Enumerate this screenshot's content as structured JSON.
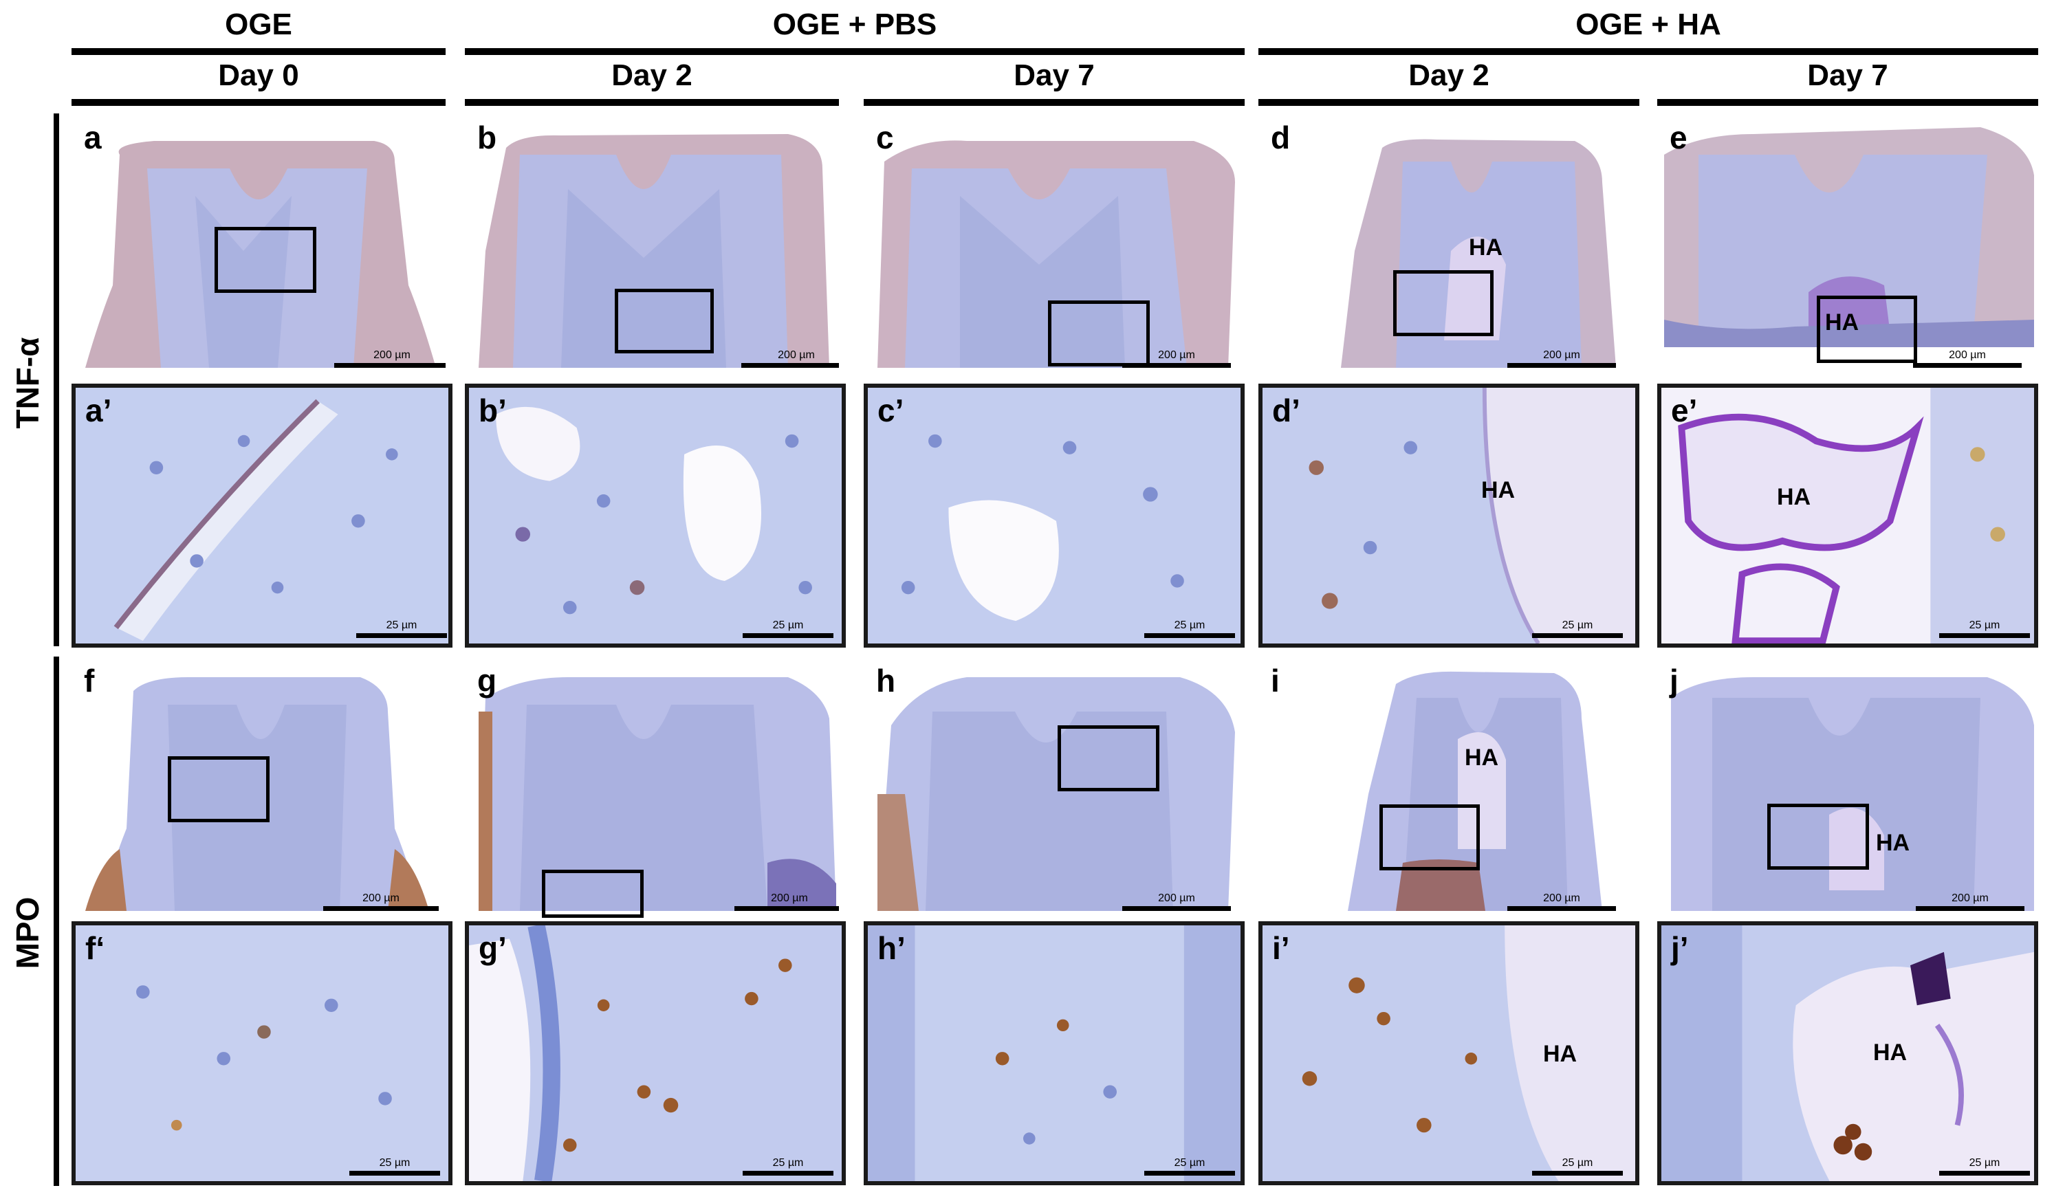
{
  "groups": [
    "OGE",
    "OGE + PBS",
    "OGE + HA"
  ],
  "days": [
    "Day 0",
    "Day 2",
    "Day 7",
    "Day 2",
    "Day 7"
  ],
  "rows": [
    "TNF-α",
    "MPO"
  ],
  "panels": {
    "a": "a",
    "b": "b",
    "c": "c",
    "d": "d",
    "e": "e",
    "a2": "a’",
    "b2": "b’",
    "c2": "c’",
    "d2": "d’",
    "e2": "e’",
    "f": "f",
    "g": "g",
    "h": "h",
    "i": "i",
    "j": "j",
    "f2": "f‘",
    "g2": "g’",
    "h2": "h’",
    "i2": "i’",
    "j2": "j’"
  },
  "scale_overview": "200 µm",
  "scale_zoom": "25 µm",
  "ha_label": "HA"
}
